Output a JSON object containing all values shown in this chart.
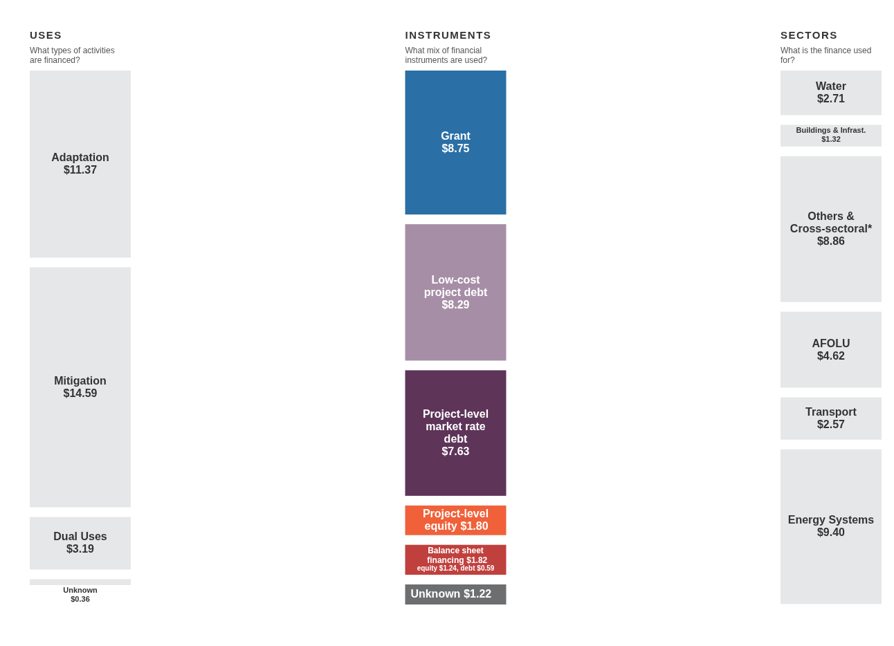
{
  "chart_data": [
    {
      "type": "other",
      "title": "USES",
      "subtitle": "What types of activities are financed?",
      "categories": [
        "Adaptation",
        "Mitigation",
        "Dual Uses",
        "Unknown"
      ],
      "values": [
        11.37,
        14.59,
        3.19,
        0.36
      ],
      "value_labels": [
        "$11.37",
        "$14.59",
        "$3.19",
        "$0.36"
      ],
      "colors": [
        "#e6e7e8",
        "#e6e7e8",
        "#e6e7e8",
        "#e6e7e8"
      ]
    },
    {
      "type": "other",
      "title": "INSTRUMENTS",
      "subtitle": "What mix of financial instruments are used?",
      "categories": [
        "Grant",
        "Low-cost project debt",
        "Project-level market rate debt",
        "Project-level equity",
        "Balance sheet financing",
        "Unknown"
      ],
      "values": [
        8.75,
        8.29,
        7.63,
        1.8,
        1.82,
        1.22
      ],
      "value_labels": [
        "$8.75",
        "$8.29",
        "$7.63",
        "$1.80",
        "$1.82",
        "$1.22"
      ],
      "colors": [
        "#2a6fa5",
        "#a68ea6",
        "#5e3459",
        "#f0613a",
        "#c0403e",
        "#6d6e70"
      ],
      "annotations": [
        {
          "text": "equity $1.24, debt $0.59",
          "x": "Balance sheet financing"
        }
      ]
    },
    {
      "type": "other",
      "title": "SECTORS",
      "subtitle": "What is the finance used for?",
      "categories": [
        "Water",
        "Buildings & Infrast.",
        "Others & Cross-sectoral*",
        "AFOLU",
        "Transport",
        "Energy Systems"
      ],
      "values": [
        2.71,
        1.32,
        8.86,
        4.62,
        2.57,
        9.4
      ],
      "value_labels": [
        "$2.71",
        "$1.32",
        "$8.86",
        "$4.62",
        "$2.57",
        "$9.40"
      ],
      "colors": [
        "#e6e7e8",
        "#e6e7e8",
        "#e6e7e8",
        "#e6e7e8",
        "#e6e7e8",
        "#e6e7e8"
      ]
    }
  ]
}
